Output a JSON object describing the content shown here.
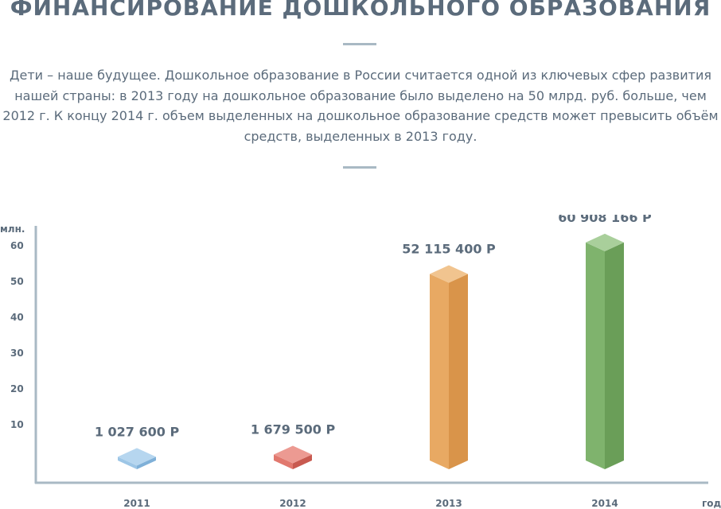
{
  "header": {
    "title": "ФИНАНСИРОВАНИЕ ДОШКОЛЬНОГО ОБРАЗОВАНИЯ",
    "lead_lines": [
      "Дети – наше будущее. Дошкольное образование в России считается одной из ключевых сфер развития",
      "нашей страны: в 2013 году на дошкольное образование было выделено на 50 млрд. руб. больше, чем",
      "2012 г. К концу 2014 г. объем выделенных на дошкольное образование средств может превысить объём",
      "средств, выделенных в 2013 году."
    ]
  },
  "chart_data": {
    "type": "bar",
    "ylabel": "млн.",
    "xlabel": "год",
    "yticks": [
      10,
      20,
      30,
      40,
      50,
      60
    ],
    "ylim": [
      0,
      67
    ],
    "categories": [
      "2011",
      "2012",
      "2013",
      "2014"
    ],
    "values": [
      1.0276,
      1.6795,
      52.1154,
      60.908166
    ],
    "value_labels": [
      "1 027 600 Р",
      "1 679 500 Р",
      "52 115 400 Р",
      "60 908 166 Р"
    ],
    "colors": [
      "#9dc6e6",
      "#e1786e",
      "#e8a963",
      "#7fb36d"
    ],
    "top_colors": [
      "#b6d6ef",
      "#ec9a92",
      "#f1c48f",
      "#a9cf9b"
    ],
    "side_colors": [
      "#7fb0d8",
      "#c85a50",
      "#d9944a",
      "#6a9e58"
    ]
  }
}
